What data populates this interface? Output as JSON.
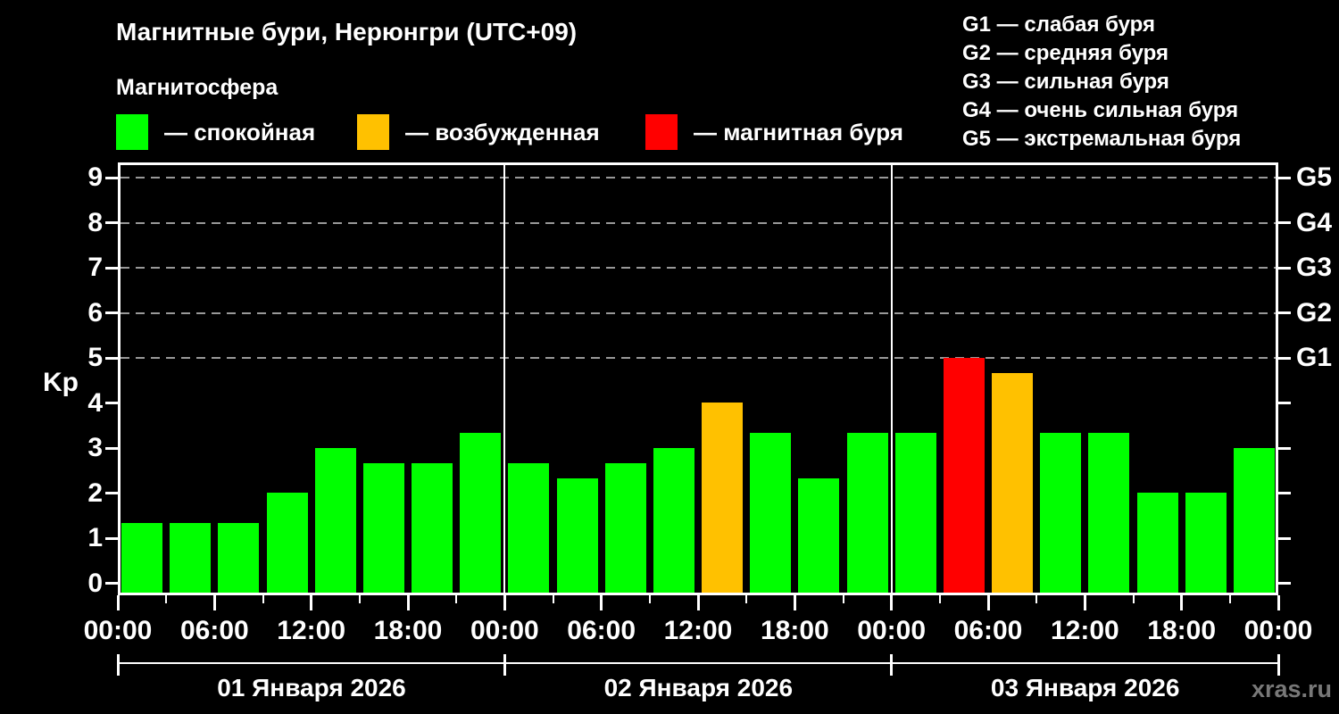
{
  "title": "Магнитные бури, Нерюнгри (UTC+09)",
  "subtitle": "Магнитосфера",
  "legend": {
    "items": [
      {
        "name": "quiet",
        "label": "— спокойная",
        "color": "#00ff00"
      },
      {
        "name": "active",
        "label": "— возбужденная",
        "color": "#ffc100"
      },
      {
        "name": "storm",
        "label": "— магнитная буря",
        "color": "#ff0000"
      }
    ]
  },
  "g_legend": [
    "G1 — слабая буря",
    "G2 — средняя буря",
    "G3 — сильная буря",
    "G4 — очень сильная буря",
    "G5 — экстремальная буря"
  ],
  "watermark": "xras.ru",
  "chart_data": {
    "type": "bar",
    "title": "Магнитные бури, Нерюнгри (UTC+09)",
    "ylabel": "Kp",
    "ylim": [
      0,
      9
    ],
    "yticks": [
      0,
      1,
      2,
      3,
      4,
      5,
      6,
      7,
      8,
      9
    ],
    "gridline_levels": [
      5,
      6,
      7,
      8,
      9
    ],
    "grid": "dashed horizontal at Kp 5-9 only",
    "right_axis_labels": [
      {
        "kp": 5,
        "label": "G1"
      },
      {
        "kp": 6,
        "label": "G2"
      },
      {
        "kp": 7,
        "label": "G3"
      },
      {
        "kp": 8,
        "label": "G4"
      },
      {
        "kp": 9,
        "label": "G5"
      }
    ],
    "x_tick_labels": [
      "00:00",
      "06:00",
      "12:00",
      "18:00",
      "00:00",
      "06:00",
      "12:00",
      "18:00",
      "00:00",
      "06:00",
      "12:00",
      "18:00",
      "00:00"
    ],
    "bar_interval_hours": 3,
    "colors": {
      "quiet": "#00ff00",
      "active": "#ffc100",
      "storm": "#ff0000"
    },
    "days": [
      {
        "date": "01 Января 2026",
        "bars": [
          {
            "kp": 1.33,
            "state": "quiet"
          },
          {
            "kp": 1.33,
            "state": "quiet"
          },
          {
            "kp": 1.33,
            "state": "quiet"
          },
          {
            "kp": 2.0,
            "state": "quiet"
          },
          {
            "kp": 3.0,
            "state": "quiet"
          },
          {
            "kp": 2.67,
            "state": "quiet"
          },
          {
            "kp": 2.67,
            "state": "quiet"
          },
          {
            "kp": 3.33,
            "state": "quiet"
          }
        ]
      },
      {
        "date": "02 Января 2026",
        "bars": [
          {
            "kp": 2.67,
            "state": "quiet"
          },
          {
            "kp": 2.33,
            "state": "quiet"
          },
          {
            "kp": 2.67,
            "state": "quiet"
          },
          {
            "kp": 3.0,
            "state": "quiet"
          },
          {
            "kp": 4.0,
            "state": "active"
          },
          {
            "kp": 3.33,
            "state": "quiet"
          },
          {
            "kp": 2.33,
            "state": "quiet"
          },
          {
            "kp": 3.33,
            "state": "quiet"
          }
        ]
      },
      {
        "date": "03 Января 2026",
        "bars": [
          {
            "kp": 3.33,
            "state": "quiet"
          },
          {
            "kp": 5.0,
            "state": "storm"
          },
          {
            "kp": 4.67,
            "state": "active"
          },
          {
            "kp": 3.33,
            "state": "quiet"
          },
          {
            "kp": 3.33,
            "state": "quiet"
          },
          {
            "kp": 2.0,
            "state": "quiet"
          },
          {
            "kp": 2.0,
            "state": "quiet"
          },
          {
            "kp": 3.0,
            "state": "quiet"
          }
        ]
      }
    ]
  }
}
